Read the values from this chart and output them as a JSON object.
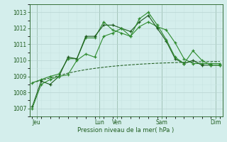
{
  "bg_color": "#d4eeec",
  "grid_color_major": "#b8d4d2",
  "grid_color_minor": "#c8e4e2",
  "dark_green": "#1e5c1e",
  "mid_green": "#2e8b2e",
  "ylim": [
    1006.5,
    1013.5
  ],
  "yticks": [
    1007,
    1008,
    1009,
    1010,
    1011,
    1012,
    1013
  ],
  "xlabel": "Pression niveau de la mer( hPa )",
  "n_points": 22,
  "xlim": [
    -0.3,
    21.3
  ],
  "xtick_positions": [
    0.5,
    7.5,
    9.5,
    14.5,
    20.5
  ],
  "xtick_labels": [
    "Jeu",
    "Lun",
    "Ven",
    "Sam",
    "Dim"
  ],
  "vline_positions": [
    0.5,
    7.5,
    9.5,
    14.5,
    20.5
  ],
  "line1_y": [
    1007.0,
    1008.5,
    1008.8,
    1009.0,
    1009.1,
    1010.0,
    1010.4,
    1010.2,
    1011.5,
    1011.7,
    1012.0,
    1011.5,
    1012.6,
    1013.0,
    1012.2,
    1011.3,
    1010.2,
    1009.8,
    1010.6,
    1010.0,
    1009.7,
    1009.7
  ],
  "line2_y": [
    1007.1,
    1008.7,
    1008.5,
    1009.0,
    1010.2,
    1010.1,
    1011.5,
    1011.5,
    1012.2,
    1012.2,
    1012.0,
    1011.8,
    1012.4,
    1012.8,
    1012.0,
    1011.2,
    1010.1,
    1009.8,
    1010.0,
    1009.7,
    1009.7,
    1009.7
  ],
  "line3_y": [
    1008.6,
    1008.8,
    1009.0,
    1009.15,
    1010.1,
    1010.1,
    1011.4,
    1011.4,
    1012.4,
    1011.9,
    1011.7,
    1011.5,
    1012.1,
    1012.4,
    1012.1,
    1011.9,
    1011.1,
    1010.1,
    1009.8,
    1009.8,
    1009.8,
    1009.8
  ],
  "line4_y": [
    1008.6,
    1008.75,
    1008.9,
    1009.05,
    1009.2,
    1009.32,
    1009.42,
    1009.5,
    1009.57,
    1009.63,
    1009.68,
    1009.72,
    1009.76,
    1009.79,
    1009.82,
    1009.84,
    1009.86,
    1009.88,
    1009.9,
    1009.91,
    1009.92,
    1009.93
  ]
}
